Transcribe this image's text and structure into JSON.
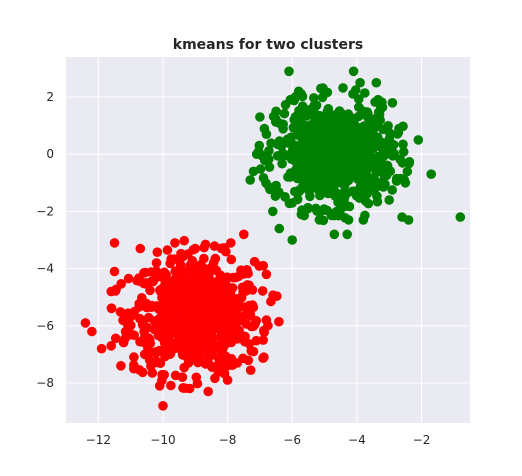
{
  "chart_data": {
    "type": "scatter",
    "title": "kmeans for two clusters",
    "xlabel": "",
    "ylabel": "",
    "xlim": [
      -13.0,
      -0.5
    ],
    "ylim": [
      -9.4,
      3.4
    ],
    "xticks": [
      -12,
      -10,
      -8,
      -6,
      -4,
      -2
    ],
    "yticks": [
      2,
      0,
      -2,
      -4,
      -6,
      -8
    ],
    "xtick_labels": [
      "−12",
      "−10",
      "−8",
      "−6",
      "−4",
      "−2"
    ],
    "ytick_labels": [
      "2",
      "0",
      "−2",
      "−4",
      "−6",
      "−8"
    ],
    "grid": true,
    "legend": false,
    "series": [
      {
        "color": "#ff0000",
        "center": [
          -9.0,
          -5.6
        ],
        "spread": [
          1.0,
          1.0
        ],
        "n_points": 700,
        "points": [
          [
            -12.4,
            -5.9
          ],
          [
            -12.2,
            -6.2
          ],
          [
            -11.9,
            -6.8
          ],
          [
            -11.6,
            -6.7
          ],
          [
            -11.5,
            -3.1
          ],
          [
            -11.5,
            -4.1
          ],
          [
            -11.6,
            -4.8
          ],
          [
            -11.3,
            -7.4
          ],
          [
            -10.9,
            -7.5
          ],
          [
            -10.1,
            -8.1
          ],
          [
            -10.0,
            -8.8
          ],
          [
            -9.4,
            -7.8
          ],
          [
            -8.6,
            -8.3
          ],
          [
            -8.0,
            -7.9
          ],
          [
            -7.5,
            -2.8
          ],
          [
            -6.9,
            -3.9
          ],
          [
            -6.8,
            -4.2
          ],
          [
            -6.8,
            -5.8
          ],
          [
            -6.9,
            -6.5
          ],
          [
            -7.2,
            -6.9
          ],
          [
            -7.7,
            -7.3
          ],
          [
            -10.7,
            -3.3
          ],
          [
            -10.2,
            -3.8
          ],
          [
            -7.9,
            -3.1
          ],
          [
            -9.0,
            -3.3
          ]
        ]
      },
      {
        "color": "#008000",
        "center": [
          -4.7,
          0.0
        ],
        "spread": [
          0.9,
          0.9
        ],
        "n_points": 700,
        "points": [
          [
            -6.1,
            2.9
          ],
          [
            -5.8,
            2.2
          ],
          [
            -4.1,
            2.9
          ],
          [
            -3.9,
            2.5
          ],
          [
            -3.4,
            2.5
          ],
          [
            -2.9,
            1.8
          ],
          [
            -2.1,
            0.5
          ],
          [
            -1.7,
            -0.7
          ],
          [
            -0.8,
            -2.2
          ],
          [
            -2.4,
            -2.3
          ],
          [
            -2.6,
            -2.2
          ],
          [
            -4.3,
            -2.8
          ],
          [
            -4.7,
            -2.8
          ],
          [
            -6.0,
            -3.0
          ],
          [
            -6.4,
            -2.6
          ],
          [
            -7.2,
            -0.6
          ],
          [
            -7.3,
            -0.9
          ],
          [
            -7.1,
            0.0
          ],
          [
            -6.5,
            1.5
          ],
          [
            -7.0,
            1.3
          ],
          [
            -6.8,
            0.7
          ],
          [
            -6.6,
            -2.0
          ],
          [
            -3.0,
            -1.6
          ],
          [
            -3.8,
            -2.3
          ],
          [
            -2.5,
            -1.0
          ]
        ]
      }
    ]
  }
}
